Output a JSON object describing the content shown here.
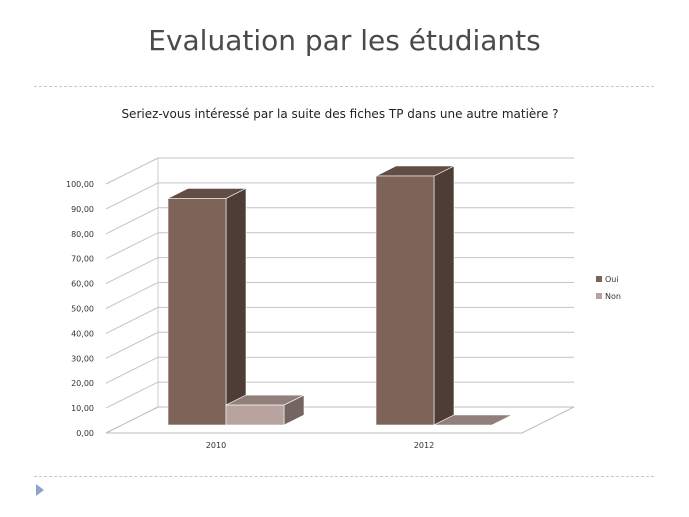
{
  "slide": {
    "title": "Evaluation par les étudiants"
  },
  "chart_data": {
    "type": "bar",
    "title": "Seriez-vous intéressé par la suite des fiches TP dans une autre matière ?",
    "categories": [
      "2010",
      "2012"
    ],
    "series": [
      {
        "name": "Oui",
        "values": [
          91.0,
          100.0
        ],
        "color": "#7e6359"
      },
      {
        "name": "Non",
        "values": [
          8.0,
          0.0
        ],
        "color": "#b8a39e"
      }
    ],
    "ylim": [
      0,
      100
    ],
    "yticks": [
      "0,00",
      "10,00",
      "20,00",
      "30,00",
      "40,00",
      "50,00",
      "60,00",
      "70,00",
      "80,00",
      "90,00",
      "100,00"
    ],
    "grid": true,
    "three_d": true,
    "legend": "right"
  }
}
